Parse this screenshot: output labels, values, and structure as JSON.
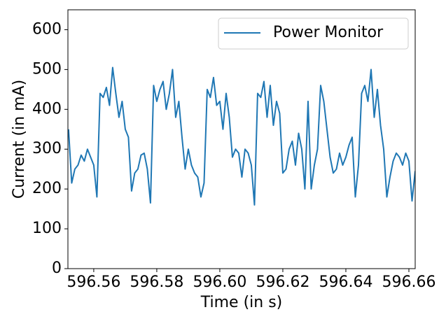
{
  "chart_data": {
    "type": "line",
    "xlabel": "Time (in s)",
    "ylabel": "Current (in mA)",
    "xlim": [
      596.5518,
      596.662
    ],
    "ylim": [
      0,
      650
    ],
    "xticks": [
      596.56,
      596.58,
      {
        "value": 596.6,
        "label": "596.60"
      },
      596.62,
      596.64,
      596.66
    ],
    "yticks": [
      0,
      100,
      200,
      300,
      400,
      500,
      600
    ],
    "legend": "upper right",
    "x": [
      596.552,
      596.553,
      596.554,
      596.555,
      596.556,
      596.557,
      596.558,
      596.559,
      596.56,
      596.561,
      596.562,
      596.563,
      596.564,
      596.565,
      596.566,
      596.567,
      596.568,
      596.569,
      596.57,
      596.571,
      596.572,
      596.573,
      596.574,
      596.575,
      596.576,
      596.577,
      596.578,
      596.579,
      596.58,
      596.581,
      596.582,
      596.583,
      596.584,
      596.585,
      596.586,
      596.587,
      596.588,
      596.589,
      596.59,
      596.591,
      596.592,
      596.593,
      596.594,
      596.595,
      596.596,
      596.597,
      596.598,
      596.599,
      596.6,
      596.601,
      596.602,
      596.603,
      596.604,
      596.605,
      596.606,
      596.607,
      596.608,
      596.609,
      596.61,
      596.611,
      596.612,
      596.613,
      596.614,
      596.615,
      596.616,
      596.617,
      596.618,
      596.619,
      596.62,
      596.621,
      596.622,
      596.623,
      596.624,
      596.625,
      596.626,
      596.627,
      596.628,
      596.629,
      596.63,
      596.631,
      596.632,
      596.633,
      596.634,
      596.635,
      596.636,
      596.637,
      596.638,
      596.639,
      596.64,
      596.641,
      596.642,
      596.643,
      596.644,
      596.645,
      596.646,
      596.647,
      596.648,
      596.649,
      596.65,
      596.651,
      596.652,
      596.653,
      596.654,
      596.655,
      596.656,
      596.657,
      596.658,
      596.659,
      596.66,
      596.661,
      596.662
    ],
    "series": [
      {
        "name": "Power Monitor",
        "color": "#1f77b4",
        "values": [
          350,
          215,
          250,
          260,
          285,
          270,
          300,
          280,
          260,
          180,
          440,
          430,
          455,
          410,
          505,
          440,
          380,
          420,
          350,
          330,
          195,
          240,
          250,
          285,
          290,
          250,
          165,
          460,
          420,
          450,
          470,
          400,
          440,
          500,
          380,
          420,
          330,
          250,
          300,
          260,
          240,
          230,
          180,
          215,
          450,
          430,
          480,
          410,
          420,
          350,
          440,
          380,
          280,
          300,
          290,
          230,
          300,
          290,
          260,
          160,
          440,
          430,
          470,
          380,
          460,
          360,
          420,
          390,
          240,
          250,
          300,
          320,
          260,
          340,
          300,
          200,
          420,
          200,
          260,
          300,
          460,
          420,
          350,
          280,
          240,
          250,
          290,
          260,
          280,
          310,
          330,
          180,
          260,
          440,
          460,
          420,
          500,
          380,
          450,
          360,
          300,
          180,
          230,
          270,
          290,
          280,
          260,
          290,
          270,
          170,
          245
        ]
      }
    ]
  }
}
